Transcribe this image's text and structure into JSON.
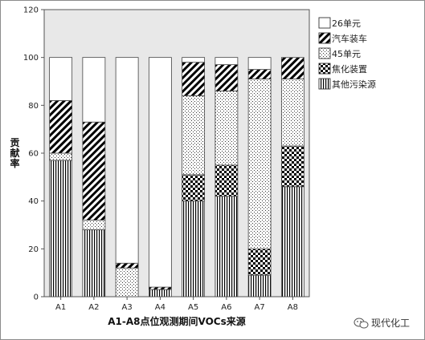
{
  "chart_data": {
    "type": "bar",
    "stacked": true,
    "categories": [
      "A1",
      "A2",
      "A3",
      "A4",
      "A5",
      "A6",
      "A7",
      "A8"
    ],
    "series": [
      {
        "name": "其他污染源",
        "pattern": "vertical-lines",
        "values": [
          57,
          28,
          0,
          3,
          40,
          42,
          9,
          46
        ]
      },
      {
        "name": "焦化装置",
        "pattern": "checker",
        "values": [
          0,
          0,
          0,
          0,
          11,
          13,
          11,
          17
        ]
      },
      {
        "name": "45单元",
        "pattern": "dots",
        "values": [
          3,
          4,
          12,
          0,
          33,
          31,
          71,
          28
        ]
      },
      {
        "name": "汽车装车",
        "pattern": "diagonal",
        "values": [
          22,
          41,
          2,
          1,
          14,
          11,
          4,
          9
        ]
      },
      {
        "name": "26单元",
        "pattern": "white",
        "values": [
          18,
          27,
          86,
          96,
          2,
          3,
          5,
          0
        ]
      }
    ],
    "xlabel": "A1-A8点位观测期间VOCs来源",
    "ylabel": "贡献率",
    "ylim": [
      0,
      120
    ],
    "yticks": [
      0,
      20,
      40,
      60,
      80,
      100,
      120
    ],
    "legend_position": "top-right",
    "plot_background": "#e8e8e8"
  },
  "watermark": {
    "text": "现代化工",
    "icon": "wechat-icon"
  }
}
